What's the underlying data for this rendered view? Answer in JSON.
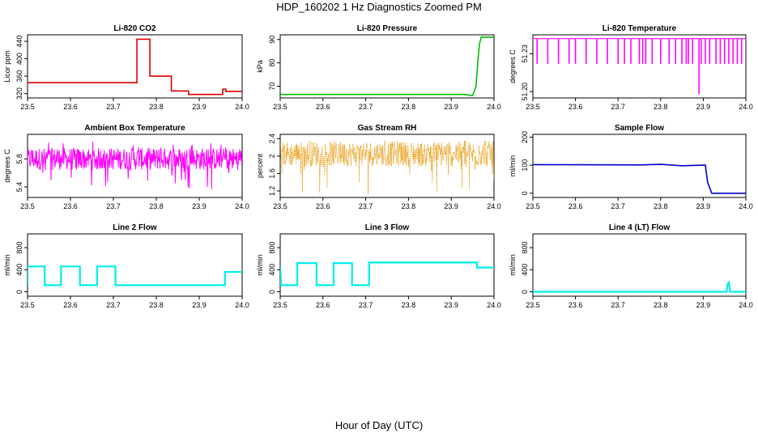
{
  "title": "HDP_160202  1 Hz Diagnostics Zoomed PM",
  "xlabel": "Hour of Day (UTC)",
  "chart_data": [
    {
      "type": "line",
      "title": "Li-820 CO2",
      "ylabel": "Licor ppm",
      "color": "#dd0000",
      "xlim": [
        23.5,
        24.0
      ],
      "ylim": [
        310,
        455
      ],
      "xticks": [
        "23.5",
        "23.6",
        "23.7",
        "23.8",
        "23.9",
        "24.0"
      ],
      "yticks": [
        320,
        360,
        400,
        440
      ],
      "x": [
        23.5,
        23.755,
        23.755,
        23.785,
        23.785,
        23.835,
        23.835,
        23.875,
        23.875,
        23.955,
        23.955,
        23.962,
        23.962,
        24.0
      ],
      "y": [
        345,
        345,
        445,
        445,
        360,
        360,
        326,
        326,
        318,
        318,
        330,
        330,
        325,
        325
      ]
    },
    {
      "type": "line",
      "title": "Li-820 Pressure",
      "ylabel": "kPa",
      "color": "#00bb00",
      "xlim": [
        23.5,
        24.0
      ],
      "ylim": [
        65,
        92
      ],
      "xticks": [
        "23.5",
        "23.6",
        "23.7",
        "23.8",
        "23.9",
        "24.0"
      ],
      "yticks": [
        70,
        80,
        90
      ],
      "x": [
        23.5,
        23.93,
        23.95,
        23.958,
        23.962,
        23.966,
        23.97,
        24.0
      ],
      "y": [
        66.5,
        66.5,
        66,
        70,
        80,
        88,
        91,
        91
      ]
    },
    {
      "type": "line",
      "title": "Li-820 Temperature",
      "ylabel": "degrees C",
      "color": "#ff00ff",
      "xlim": [
        23.5,
        24.0
      ],
      "ylim": [
        51.195,
        51.245
      ],
      "xticks": [
        "23.5",
        "23.6",
        "23.7",
        "23.8",
        "23.9",
        "24.0"
      ],
      "yticks": [
        "51.20",
        "51.23"
      ],
      "baseline": 51.242,
      "drops": [
        23.51,
        23.535,
        23.56,
        23.585,
        23.6,
        23.625,
        23.65,
        23.675,
        23.7,
        23.715,
        23.73,
        23.75,
        23.758,
        23.765,
        23.78,
        23.8,
        23.82,
        23.835,
        23.85,
        23.86,
        23.865,
        23.875,
        23.895,
        23.905,
        23.915,
        23.93,
        23.94,
        23.95,
        23.96,
        23.97,
        23.98,
        23.99
      ],
      "drop_to": 51.222,
      "deep_drop": [
        23.89,
        51.198
      ]
    },
    {
      "type": "line",
      "title": "Ambient Box Temperature",
      "ylabel": "degrees C",
      "color": "#ff00ff",
      "xlim": [
        23.5,
        24.0
      ],
      "ylim": [
        5.25,
        6.15
      ],
      "xticks": [
        "23.5",
        "23.6",
        "23.7",
        "23.8",
        "23.9",
        "24.0"
      ],
      "yticks": [
        5.4,
        5.8
      ],
      "center": 5.8,
      "range": [
        5.35,
        6.05
      ]
    },
    {
      "type": "scatter",
      "title": "Gas Stream RH",
      "ylabel": "percent",
      "color": "#e69500",
      "xlim": [
        23.5,
        24.0
      ],
      "ylim": [
        1.05,
        2.5
      ],
      "xticks": [
        "23.5",
        "23.6",
        "23.7",
        "23.8",
        "23.9",
        "24.0"
      ],
      "yticks": [
        1.2,
        1.6,
        2.0,
        2.4
      ],
      "center": 2.05,
      "range": [
        1.1,
        2.4
      ]
    },
    {
      "type": "line",
      "title": "Sample Flow",
      "ylabel": "ml/min",
      "color": "#0000cc",
      "xlim": [
        23.5,
        24.0
      ],
      "ylim": [
        -15,
        210
      ],
      "xticks": [
        "23.5",
        "23.6",
        "23.7",
        "23.8",
        "23.9",
        "24.0"
      ],
      "yticks": [
        0,
        100,
        200
      ],
      "x": [
        23.5,
        23.75,
        23.8,
        23.85,
        23.9,
        23.905,
        23.91,
        23.92,
        24.0
      ],
      "y": [
        102,
        101,
        103,
        98,
        100,
        100,
        40,
        0,
        0
      ]
    },
    {
      "type": "line",
      "title": "Line 2 Flow",
      "ylabel": "ml/min",
      "color": "#00eeee",
      "xlim": [
        23.5,
        24.0
      ],
      "ylim": [
        -80,
        1050
      ],
      "xticks": [
        "23.5",
        "23.6",
        "23.7",
        "23.8",
        "23.9",
        "24.0"
      ],
      "yticks": [
        0,
        400,
        800
      ],
      "x": [
        23.5,
        23.5,
        23.54,
        23.54,
        23.578,
        23.578,
        23.622,
        23.622,
        23.662,
        23.662,
        23.705,
        23.705,
        23.96,
        23.96,
        24.0
      ],
      "y": [
        120,
        460,
        460,
        120,
        120,
        460,
        460,
        120,
        120,
        460,
        460,
        120,
        120,
        360,
        360
      ]
    },
    {
      "type": "line",
      "title": "Line 3 Flow",
      "ylabel": "ml/min",
      "color": "#00eeee",
      "xlim": [
        23.5,
        24.0
      ],
      "ylim": [
        -80,
        1050
      ],
      "xticks": [
        "23.5",
        "23.6",
        "23.7",
        "23.8",
        "23.9",
        "24.0"
      ],
      "yticks": [
        0,
        400,
        800
      ],
      "x": [
        23.5,
        23.5,
        23.502,
        23.502,
        23.54,
        23.54,
        23.585,
        23.585,
        23.625,
        23.625,
        23.668,
        23.668,
        23.708,
        23.708,
        23.96,
        23.96,
        24.0
      ],
      "y": [
        460,
        460,
        120,
        120,
        120,
        520,
        520,
        120,
        120,
        520,
        520,
        120,
        120,
        530,
        530,
        440,
        440
      ]
    },
    {
      "type": "line",
      "title": "Line 4 (LT) Flow",
      "ylabel": "ml/min",
      "color": "#00eeee",
      "xlim": [
        23.5,
        24.0
      ],
      "ylim": [
        -80,
        1050
      ],
      "xticks": [
        "23.5",
        "23.6",
        "23.7",
        "23.8",
        "23.9",
        "24.0"
      ],
      "yticks": [
        0,
        400,
        800
      ],
      "x": [
        23.5,
        23.955,
        23.957,
        23.96,
        23.963,
        24.0
      ],
      "y": [
        0,
        0,
        140,
        170,
        0,
        0
      ]
    }
  ]
}
